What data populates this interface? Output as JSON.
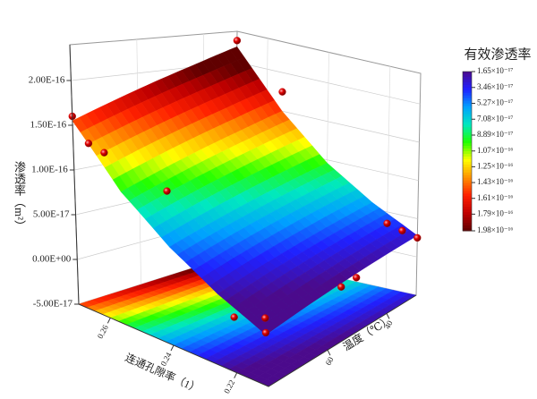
{
  "chart_data": {
    "type": "surface3d",
    "x_label": "连通孔隙率（1）",
    "y_label": "温度（℃）",
    "z_label": "渗透率（m²）",
    "xlim": [
      0.21,
      0.27
    ],
    "xticks": [
      0.22,
      0.24,
      0.26
    ],
    "ylim": [
      30,
      80
    ],
    "yticks": [
      40,
      60
    ],
    "zlim": [
      -5e-17,
      2.4e-16
    ],
    "zticks": [
      {
        "value": -5e-17,
        "label": "-5.00E-17"
      },
      {
        "value": 0,
        "label": "0.00E+00"
      },
      {
        "value": 5e-17,
        "label": "5.00E-17"
      },
      {
        "value": 1e-16,
        "label": "1.00E-16"
      },
      {
        "value": 1.5e-16,
        "label": "1.50E-16"
      },
      {
        "value": 2e-16,
        "label": "2.00E-16"
      }
    ],
    "grid": true,
    "surface": {
      "x": [
        0.21,
        0.225,
        0.24,
        0.255,
        0.27
      ],
      "y": [
        30,
        42.5,
        55,
        67.5,
        80
      ],
      "z": [
        [
          2.8e-17,
          5.8e-17,
          9.6e-17,
          1.5e-16,
          2.2e-16
        ],
        [
          2.1e-17,
          4.9e-17,
          8.5e-17,
          1.35e-16,
          2.03e-16
        ],
        [
          1.4e-17,
          4e-17,
          7.4e-17,
          1.21e-16,
          1.87e-16
        ],
        [
          7e-18,
          3.1e-17,
          6.3e-17,
          1.07e-16,
          1.71e-16
        ],
        [
          0,
          2.2e-17,
          5.2e-17,
          9.3e-17,
          1.55e-16
        ]
      ]
    },
    "points": {
      "color": "#d40000",
      "x": [
        0.27,
        0.255,
        0.27,
        0.265,
        0.26,
        0.24,
        0.22,
        0.215,
        0.21,
        0.21,
        0.21,
        0.22,
        0.21,
        0.215
      ],
      "y": [
        30,
        30,
        80,
        80,
        80,
        80,
        30,
        30,
        30,
        55,
        50,
        80,
        80,
        75
      ],
      "values": [
        2.28e-16,
        1.75e-16,
        1.6e-16,
        1.35e-16,
        1.3e-16,
        1.1e-16,
        3.5e-17,
        3e-17,
        2.5e-17,
        1e-17,
        1.2e-17,
        5e-18,
        2e-18,
        3e-18
      ]
    },
    "colormap": [
      "#4b0a8c",
      "#2020ff",
      "#00a0ff",
      "#00e8c0",
      "#20ff00",
      "#ffff00",
      "#ff9000",
      "#ff2000",
      "#c00000",
      "#600000"
    ],
    "clim": [
      1.65e-17,
      1.98e-16
    ],
    "colorbar": {
      "title": "有效渗透率",
      "ticks": [
        {
          "value": 1.65e-17,
          "label": "1.65×10⁻¹⁷"
        },
        {
          "value": 3.46e-17,
          "label": "3.46×10⁻¹⁷"
        },
        {
          "value": 5.27e-17,
          "label": "5.27×10⁻¹⁷"
        },
        {
          "value": 7.08e-17,
          "label": "7.08×10⁻¹⁷"
        },
        {
          "value": 8.89e-17,
          "label": "8.89×10⁻¹⁷"
        },
        {
          "value": 1.07e-16,
          "label": "1.07×10⁻¹⁶"
        },
        {
          "value": 1.25e-16,
          "label": "1.25×10⁻¹⁶"
        },
        {
          "value": 1.43e-16,
          "label": "1.43×10⁻¹⁶"
        },
        {
          "value": 1.61e-16,
          "label": "1.61×10⁻¹⁶"
        },
        {
          "value": 1.79e-16,
          "label": "1.79×10⁻¹⁶"
        },
        {
          "value": 1.98e-16,
          "label": "1.98×10⁻¹⁶"
        }
      ]
    }
  }
}
